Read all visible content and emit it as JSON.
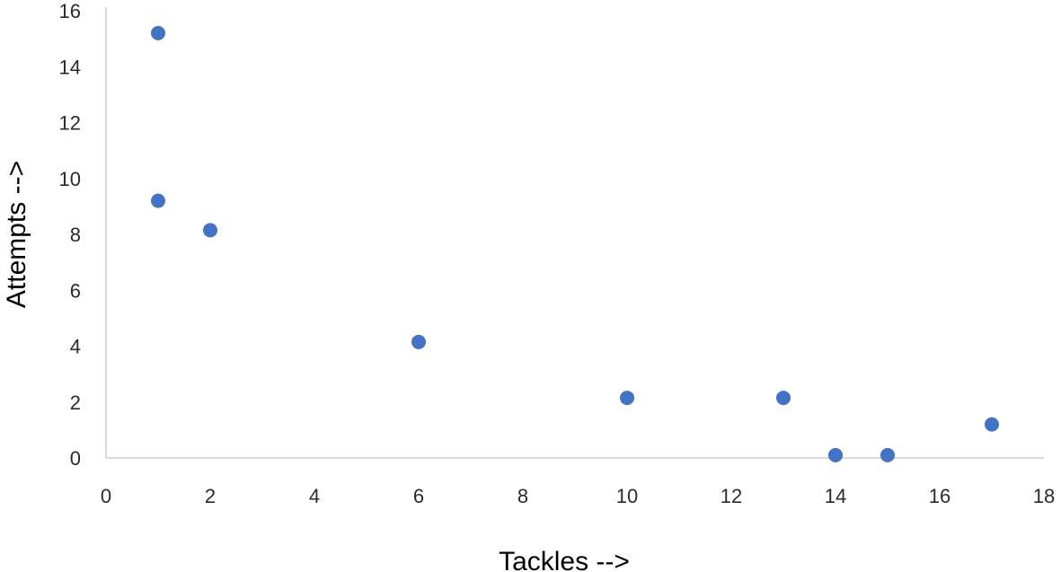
{
  "chart_data": {
    "type": "scatter",
    "title": "",
    "xlabel": "Tackles -->",
    "ylabel": "Attempts -->",
    "xlim": [
      0,
      18
    ],
    "ylim": [
      0,
      16
    ],
    "x_ticks": [
      "0",
      "2",
      "4",
      "6",
      "8",
      "10",
      "12",
      "14",
      "16",
      "18"
    ],
    "y_ticks": [
      "0",
      "2",
      "4",
      "6",
      "8",
      "10",
      "12",
      "14",
      "16"
    ],
    "grid": false,
    "legend": "none",
    "marker_color": "#4472c4",
    "axis_color": "#d9d9d9",
    "points": [
      {
        "x": 1,
        "y": 15.2
      },
      {
        "x": 1,
        "y": 9.2
      },
      {
        "x": 2,
        "y": 8.15
      },
      {
        "x": 6,
        "y": 4.15
      },
      {
        "x": 10,
        "y": 2.15
      },
      {
        "x": 13,
        "y": 2.15
      },
      {
        "x": 14,
        "y": 0.1
      },
      {
        "x": 15,
        "y": 0.1
      },
      {
        "x": 17,
        "y": 1.2
      }
    ]
  }
}
